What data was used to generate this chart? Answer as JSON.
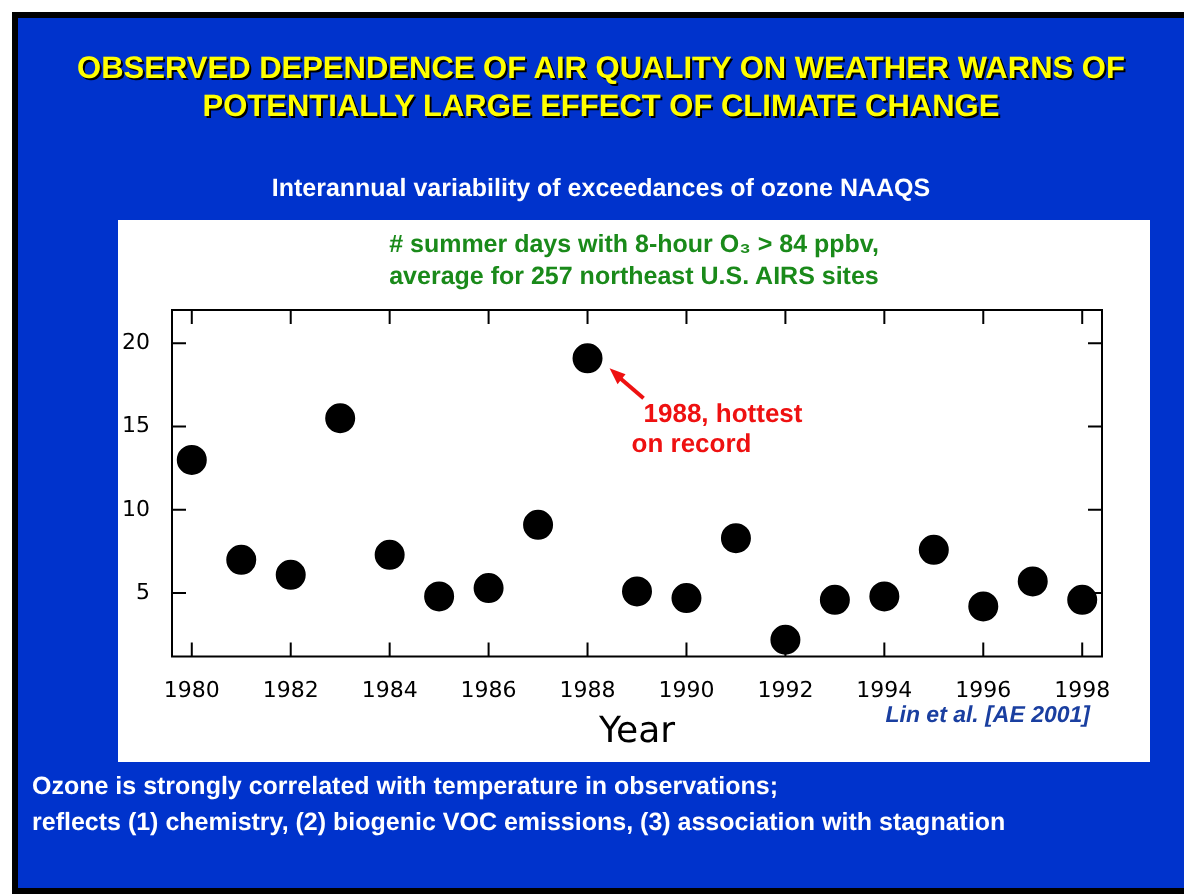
{
  "chart_data": {
    "type": "scatter",
    "title": "OBSERVED DEPENDENCE OF AIR QUALITY ON WEATHER WARNS OF POTENTIALLY LARGE EFFECT OF CLIMATE CHANGE",
    "subtitle": "Interannual variability of exceedances of ozone NAAQS",
    "xlabel": "Year",
    "x": [
      1980,
      1981,
      1982,
      1983,
      1984,
      1985,
      1986,
      1987,
      1988,
      1989,
      1990,
      1991,
      1992,
      1993,
      1994,
      1995,
      1996,
      1997,
      1998
    ],
    "values": [
      13.0,
      7.0,
      6.1,
      15.5,
      7.3,
      4.8,
      5.3,
      9.1,
      19.1,
      5.1,
      4.7,
      8.3,
      2.2,
      4.6,
      4.8,
      7.6,
      4.2,
      5.7,
      4.6
    ],
    "color": "#000000",
    "marker": "circle",
    "grid": false,
    "legend": false,
    "xlim": [
      1979.6,
      1998.4
    ],
    "xticks": [
      1980,
      1982,
      1984,
      1986,
      1988,
      1990,
      1992,
      1994,
      1996,
      1998
    ],
    "ylim": [
      1.2,
      22
    ],
    "yticks": [
      5,
      10,
      15,
      20
    ],
    "annotations": [
      "# summer days with 8-hour O₃ > 84 ppbv,\naverage for 257 northeast U.S. AIRS sites",
      {
        "text": "1988, hottest\non record",
        "x": 1988,
        "y": 19.1
      },
      "Lin et al. [AE 2001]",
      "Ozone is strongly correlated with temperature in observations;\nreflects (1) chemistry, (2) biogenic VOC emissions, (3) association with stagnation"
    ]
  }
}
